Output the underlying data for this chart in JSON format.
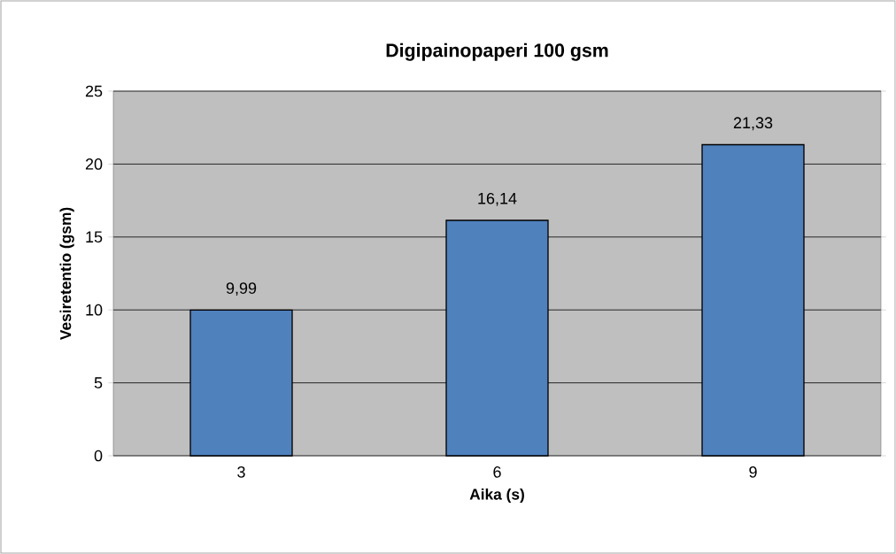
{
  "chart_data": {
    "type": "bar",
    "title": "Digipainopaperi 100 gsm",
    "xlabel": "Aika (s)",
    "ylabel": "Vesiretentio (gsm)",
    "categories": [
      "3",
      "6",
      "9"
    ],
    "values": [
      9.99,
      16.14,
      21.33
    ],
    "value_labels": [
      "9,99",
      "16,14",
      "21,33"
    ],
    "color": "#4f81bd",
    "ylim": [
      0,
      25
    ],
    "yticks": [
      0,
      5,
      10,
      15,
      20,
      25
    ],
    "grid": "y"
  }
}
